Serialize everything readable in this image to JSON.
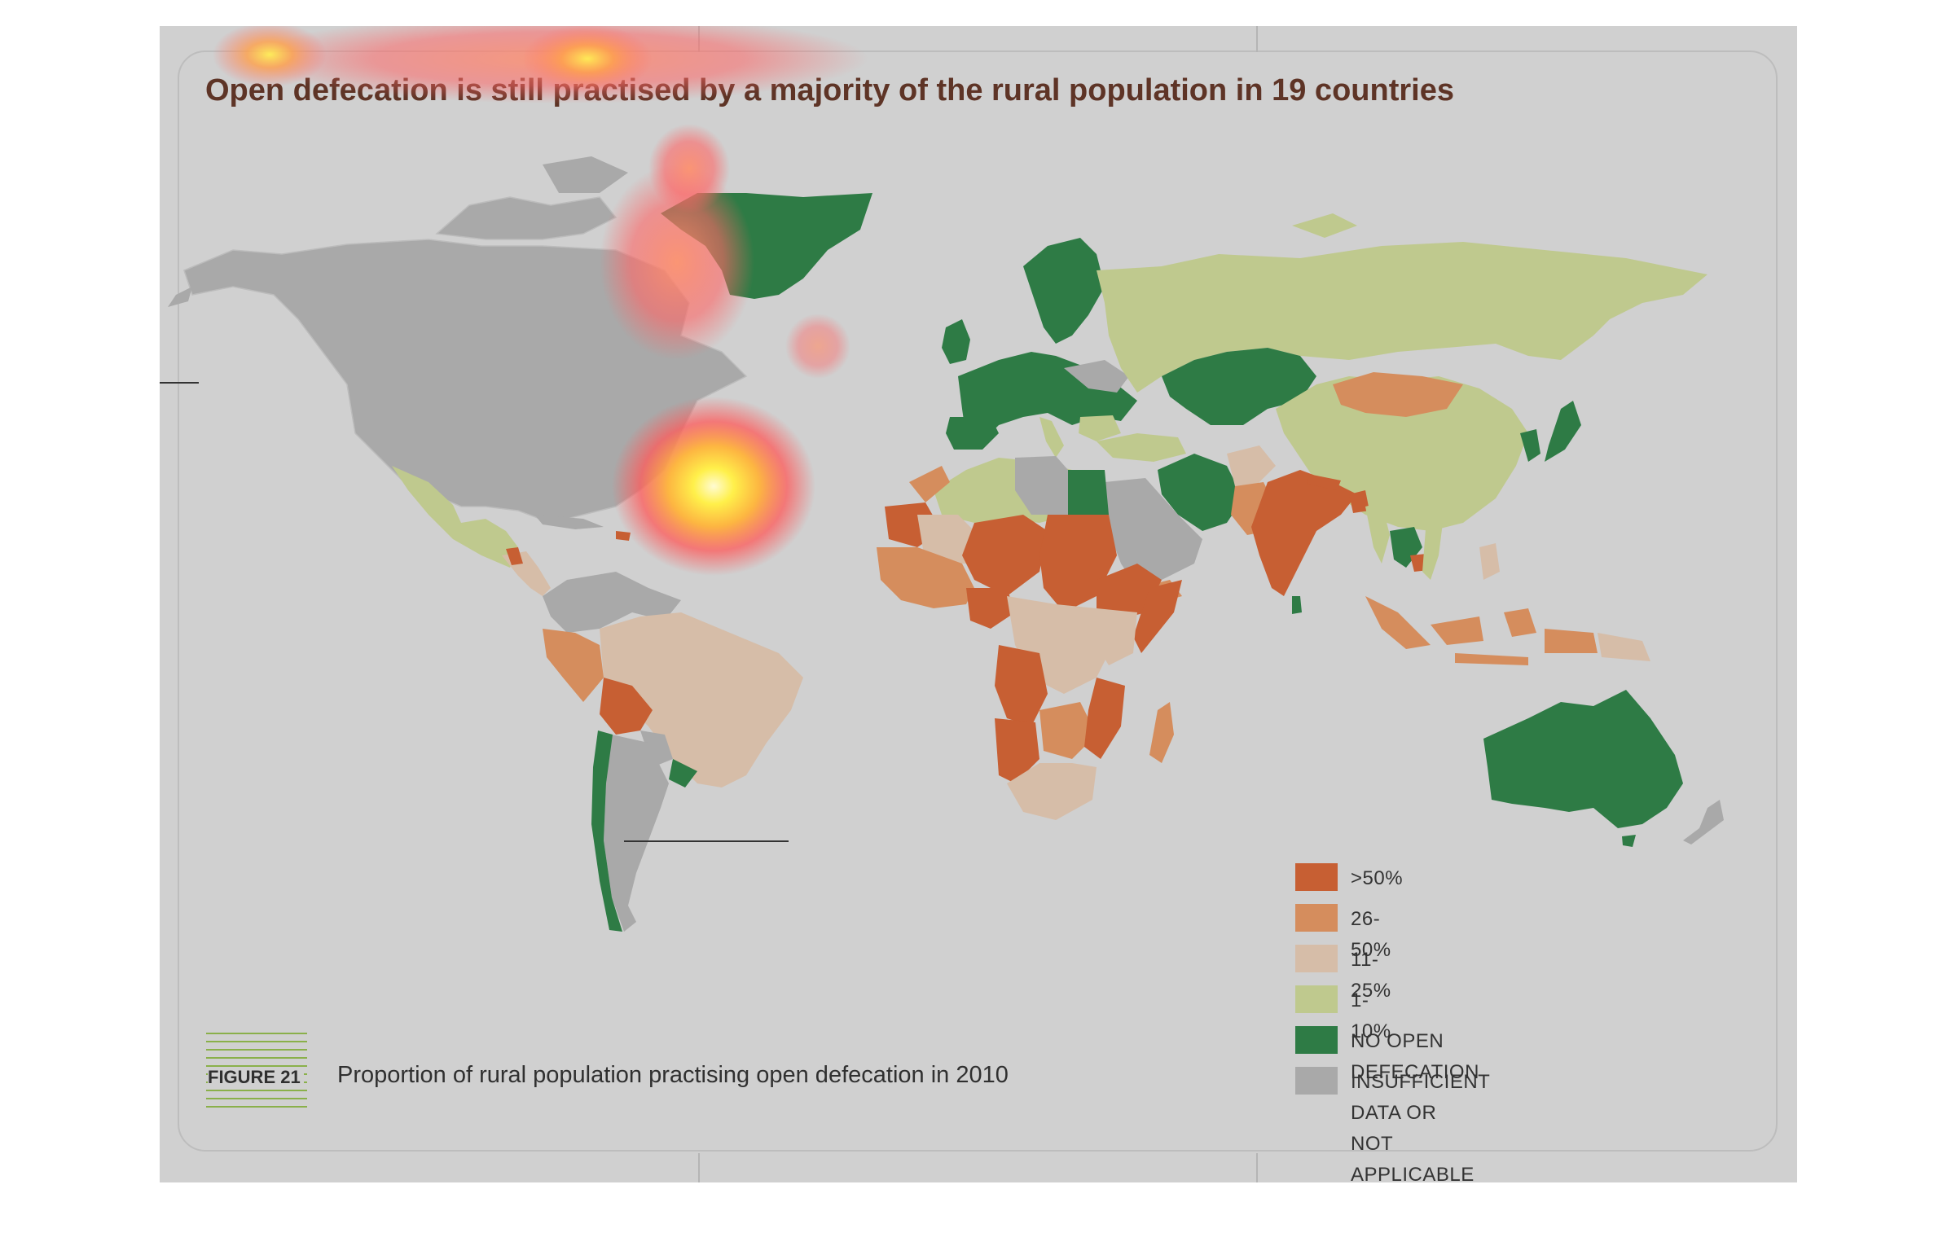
{
  "title": "Open defecation is still practised by a majority of the rural population in 19 countries",
  "figure": {
    "label": "FIGURE 21",
    "caption": "Proportion of rural population practising open defecation in 2010"
  },
  "legend": [
    {
      "label": ">50%",
      "color": "#c75f33"
    },
    {
      "label": "26-50%",
      "color": "#d58d5d"
    },
    {
      "label": "11-25%",
      "color": "#d6bda8"
    },
    {
      "label": "1-10%",
      "color": "#bfc98e"
    },
    {
      "label": "NO OPEN DEFECATION",
      "color": "#2e7b45"
    },
    {
      "label": "INSUFFICIENT DATA OR\nNOT APPLICABLE",
      "color": "#a9a9a9"
    }
  ],
  "colors": {
    "background": "#d0d0d0",
    "ocean": "#d0d0d0",
    "title": "#5e3426",
    "figure_stripes": "#8ab04a"
  }
}
